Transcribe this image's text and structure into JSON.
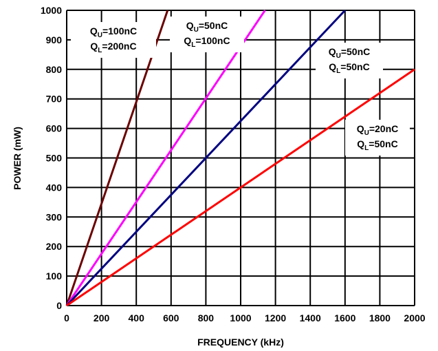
{
  "chart_data": {
    "type": "line",
    "xlabel": "FREQUENCY (kHz)",
    "ylabel": "POWER (mW)",
    "xlim": [
      0,
      2000
    ],
    "ylim": [
      0,
      1000
    ],
    "x_ticks": [
      "0",
      "200",
      "400",
      "600",
      "800",
      "1000",
      "1200",
      "1400",
      "1600",
      "1800",
      "2000"
    ],
    "y_ticks": [
      "0",
      "100",
      "200",
      "300",
      "400",
      "500",
      "600",
      "700",
      "800",
      "900",
      "1000"
    ],
    "grid": true,
    "series": [
      {
        "color": "#6b0000",
        "points": [
          [
            0,
            0
          ],
          [
            580,
            1000
          ]
        ],
        "label_lines": [
          {
            "q": "Q",
            "sub": "U",
            "val": "=100nC"
          },
          {
            "q": "Q",
            "sub": "L",
            "val": "=200nC"
          }
        ]
      },
      {
        "color": "#ff00ff",
        "points": [
          [
            0,
            0
          ],
          [
            1140,
            1000
          ]
        ],
        "label_lines": [
          {
            "q": "Q",
            "sub": "U",
            "val": "=50nC"
          },
          {
            "q": "Q",
            "sub": "L",
            "val": "=100nC"
          }
        ]
      },
      {
        "color": "#000080",
        "points": [
          [
            0,
            0
          ],
          [
            1600,
            1000
          ]
        ],
        "label_lines": [
          {
            "q": "Q",
            "sub": "U",
            "val": "=50nC"
          },
          {
            "q": "Q",
            "sub": "L",
            "val": "=50nC"
          }
        ]
      },
      {
        "color": "#ff0000",
        "points": [
          [
            0,
            0
          ],
          [
            2000,
            800
          ]
        ],
        "label_lines": [
          {
            "q": "Q",
            "sub": "U",
            "val": "=20nC"
          },
          {
            "q": "Q",
            "sub": "L",
            "val": "=50nC"
          }
        ]
      }
    ]
  }
}
